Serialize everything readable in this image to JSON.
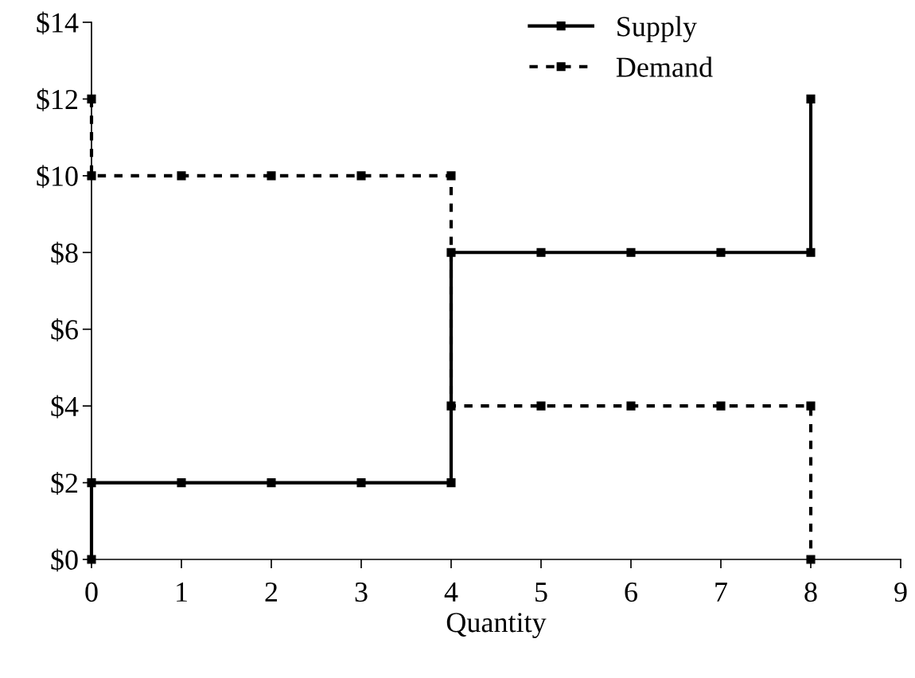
{
  "chart_data": {
    "type": "line",
    "xlabel": "Quantity",
    "series": [
      {
        "name": "Supply",
        "color": "#000000",
        "line_style": "solid",
        "x": [
          0,
          0,
          1,
          2,
          3,
          4,
          4,
          5,
          6,
          7,
          8,
          8
        ],
        "values": [
          0,
          2,
          2,
          2,
          2,
          2,
          8,
          8,
          8,
          8,
          8,
          12
        ]
      },
      {
        "name": "Demand",
        "color": "#000000",
        "line_style": "dashed",
        "x": [
          0,
          0,
          1,
          2,
          3,
          4,
          4,
          5,
          6,
          7,
          8,
          8
        ],
        "values": [
          12,
          10,
          10,
          10,
          10,
          10,
          4,
          4,
          4,
          4,
          4,
          0
        ]
      }
    ],
    "marker": "square",
    "xlim": [
      0,
      9
    ],
    "xticks": [
      0,
      1,
      2,
      3,
      4,
      5,
      6,
      7,
      8,
      9
    ],
    "ylim": [
      0,
      14
    ],
    "yticks": [
      {
        "value": 0,
        "label": "$0"
      },
      {
        "value": 2,
        "label": "$2"
      },
      {
        "value": 4,
        "label": "$4"
      },
      {
        "value": 6,
        "label": "$6"
      },
      {
        "value": 8,
        "label": "$8"
      },
      {
        "value": 10,
        "label": "$10"
      },
      {
        "value": 12,
        "label": "$12"
      },
      {
        "value": 14,
        "label": "$14"
      }
    ],
    "grid": false,
    "legend": "top right"
  }
}
